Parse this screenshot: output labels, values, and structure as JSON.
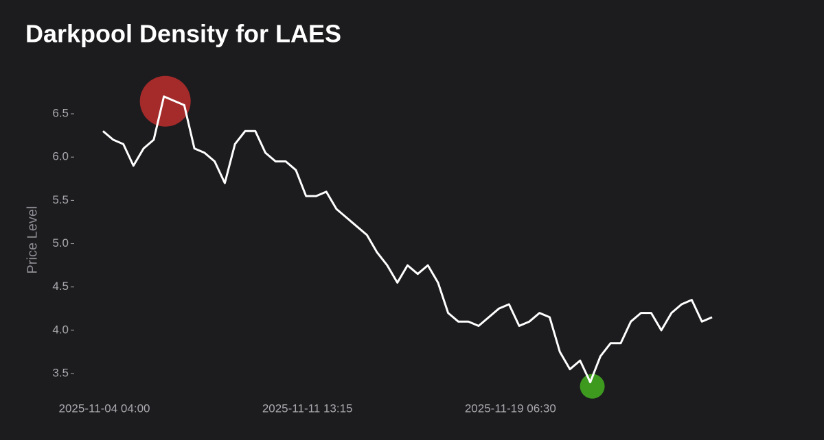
{
  "chart_data": {
    "type": "line",
    "title": "Darkpool Density for LAES",
    "y_label": "Price Level",
    "categories": [
      "2025-11-04 04:00",
      null,
      null,
      null,
      null,
      null,
      null,
      null,
      null,
      null,
      null,
      null,
      null,
      null,
      null,
      null,
      null,
      null,
      null,
      null,
      "2025-11-11 13:15",
      null,
      null,
      null,
      null,
      null,
      null,
      null,
      null,
      null,
      null,
      null,
      null,
      null,
      null,
      null,
      null,
      null,
      null,
      null,
      "2025-11-19 06:30",
      null,
      null,
      null,
      null,
      null,
      null,
      null,
      null,
      null,
      null,
      null,
      null,
      null,
      null,
      null,
      null,
      null,
      null,
      null,
      null
    ],
    "values": [
      6.3,
      6.2,
      6.15,
      5.9,
      6.1,
      6.2,
      6.7,
      6.65,
      6.6,
      6.1,
      6.05,
      5.95,
      5.7,
      6.15,
      6.3,
      6.3,
      6.05,
      5.95,
      5.95,
      5.85,
      5.55,
      5.55,
      5.6,
      5.4,
      5.3,
      5.2,
      5.1,
      4.9,
      4.75,
      4.55,
      4.75,
      4.65,
      4.75,
      4.55,
      4.2,
      4.1,
      4.1,
      4.05,
      4.15,
      4.25,
      4.3,
      4.05,
      4.1,
      4.2,
      4.15,
      3.75,
      3.55,
      3.65,
      3.4,
      3.7,
      3.85,
      3.85,
      4.1,
      4.2,
      4.2,
      4.0,
      4.2,
      4.3,
      4.35,
      4.1,
      4.15
    ],
    "color": "#ffffff",
    "max_marker_color": "#a52a2a",
    "min_marker_color": "#3d9a1f",
    "ylim": [
      3.3,
      6.9
    ],
    "yticks": [
      3.5,
      {
        "value": 4,
        "label": "4.0"
      },
      4.5,
      {
        "value": 5,
        "label": "5.0"
      },
      5.5,
      {
        "value": 6,
        "label": "6.0"
      },
      6.5
    ],
    "grid": false
  }
}
